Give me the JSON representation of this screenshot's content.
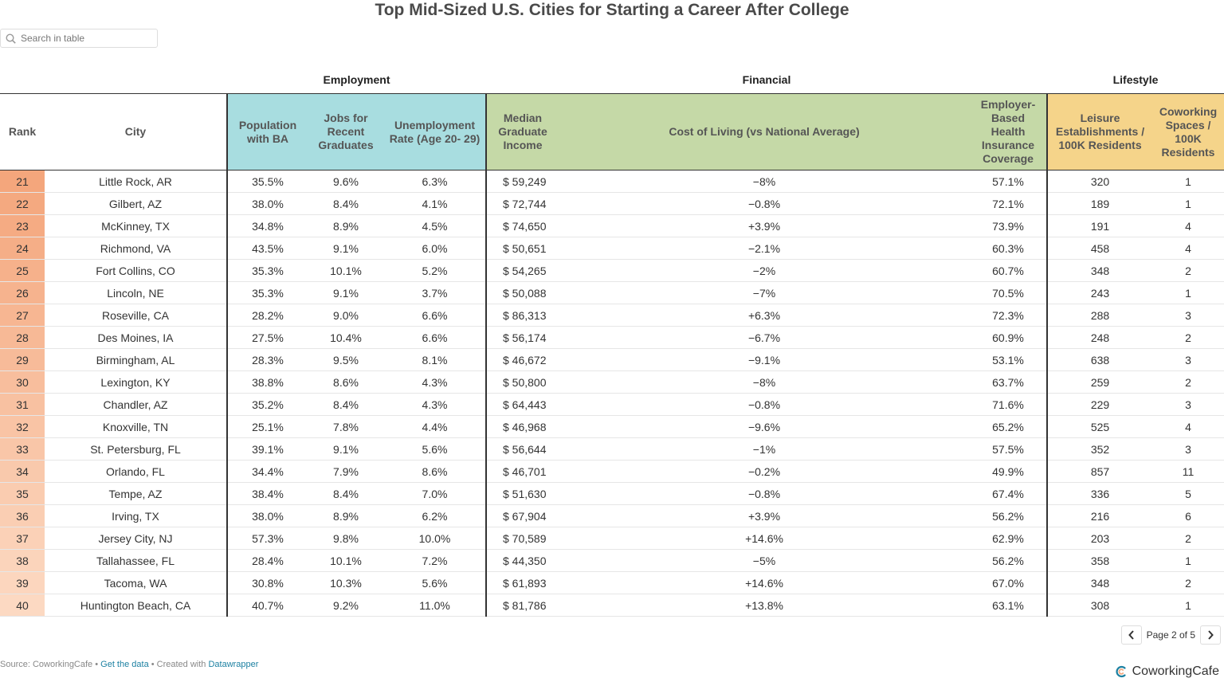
{
  "title": "Top Mid-Sized U.S. Cities for Starting a Career After College",
  "search": {
    "placeholder": "Search in table",
    "icon": "search-icon"
  },
  "groups": {
    "employment": "Employment",
    "financial": "Financial",
    "lifestyle": "Lifestyle"
  },
  "columns": {
    "rank": "Rank",
    "city": "City",
    "population": "Population with BA",
    "jobs": "Jobs for Recent Graduates",
    "unemployment": "Unemployment Rate (Age 20- 29)",
    "income": "Median Graduate Income",
    "col": "Cost of Living (vs National Average)",
    "insurance": "Employer-Based Health Insurance Coverage",
    "leisure": "Leisure Establishments / 100K Residents",
    "coworking": "Coworking Spaces / 100K Residents"
  },
  "colors": {
    "employment": "#a8dde0",
    "financial": "#c5d9a7",
    "lifestyle": "#f5d48a",
    "rank_dark": "#f4a67c",
    "rank_light": "#fcd9c2",
    "link": "#1d81a2"
  },
  "rows": [
    {
      "rank": "21",
      "city": "Little Rock, AR",
      "population": "35.5%",
      "jobs": "9.6%",
      "unemployment": "6.3%",
      "income": "$ 59,249",
      "col": "−8%",
      "insurance": "57.1%",
      "leisure": "320",
      "coworking": "1"
    },
    {
      "rank": "22",
      "city": "Gilbert, AZ",
      "population": "38.0%",
      "jobs": "8.4%",
      "unemployment": "4.1%",
      "income": "$ 72,744",
      "col": "−0.8%",
      "insurance": "72.1%",
      "leisure": "189",
      "coworking": "1"
    },
    {
      "rank": "23",
      "city": "McKinney, TX",
      "population": "34.8%",
      "jobs": "8.9%",
      "unemployment": "4.5%",
      "income": "$ 74,650",
      "col": "+3.9%",
      "insurance": "73.9%",
      "leisure": "191",
      "coworking": "4"
    },
    {
      "rank": "24",
      "city": "Richmond, VA",
      "population": "43.5%",
      "jobs": "9.1%",
      "unemployment": "6.0%",
      "income": "$ 50,651",
      "col": "−2.1%",
      "insurance": "60.3%",
      "leisure": "458",
      "coworking": "4"
    },
    {
      "rank": "25",
      "city": "Fort Collins, CO",
      "population": "35.3%",
      "jobs": "10.1%",
      "unemployment": "5.2%",
      "income": "$ 54,265",
      "col": "−2%",
      "insurance": "60.7%",
      "leisure": "348",
      "coworking": "2"
    },
    {
      "rank": "26",
      "city": "Lincoln, NE",
      "population": "35.3%",
      "jobs": "9.1%",
      "unemployment": "3.7%",
      "income": "$ 50,088",
      "col": "−7%",
      "insurance": "70.5%",
      "leisure": "243",
      "coworking": "1"
    },
    {
      "rank": "27",
      "city": "Roseville, CA",
      "population": "28.2%",
      "jobs": "9.0%",
      "unemployment": "6.6%",
      "income": "$ 86,313",
      "col": "+6.3%",
      "insurance": "72.3%",
      "leisure": "288",
      "coworking": "3"
    },
    {
      "rank": "28",
      "city": "Des Moines, IA",
      "population": "27.5%",
      "jobs": "10.4%",
      "unemployment": "6.6%",
      "income": "$ 56,174",
      "col": "−6.7%",
      "insurance": "60.9%",
      "leisure": "248",
      "coworking": "2"
    },
    {
      "rank": "29",
      "city": "Birmingham, AL",
      "population": "28.3%",
      "jobs": "9.5%",
      "unemployment": "8.1%",
      "income": "$ 46,672",
      "col": "−9.1%",
      "insurance": "53.1%",
      "leisure": "638",
      "coworking": "3"
    },
    {
      "rank": "30",
      "city": "Lexington, KY",
      "population": "38.8%",
      "jobs": "8.6%",
      "unemployment": "4.3%",
      "income": "$ 50,800",
      "col": "−8%",
      "insurance": "63.7%",
      "leisure": "259",
      "coworking": "2"
    },
    {
      "rank": "31",
      "city": "Chandler, AZ",
      "population": "35.2%",
      "jobs": "8.4%",
      "unemployment": "4.3%",
      "income": "$ 64,443",
      "col": "−0.8%",
      "insurance": "71.6%",
      "leisure": "229",
      "coworking": "3"
    },
    {
      "rank": "32",
      "city": "Knoxville, TN",
      "population": "25.1%",
      "jobs": "7.8%",
      "unemployment": "4.4%",
      "income": "$ 46,968",
      "col": "−9.6%",
      "insurance": "65.2%",
      "leisure": "525",
      "coworking": "4"
    },
    {
      "rank": "33",
      "city": "St. Petersburg, FL",
      "population": "39.1%",
      "jobs": "9.1%",
      "unemployment": "5.6%",
      "income": "$ 56,644",
      "col": "−1%",
      "insurance": "57.5%",
      "leisure": "352",
      "coworking": "3"
    },
    {
      "rank": "34",
      "city": "Orlando, FL",
      "population": "34.4%",
      "jobs": "7.9%",
      "unemployment": "8.6%",
      "income": "$ 46,701",
      "col": "−0.2%",
      "insurance": "49.9%",
      "leisure": "857",
      "coworking": "11"
    },
    {
      "rank": "35",
      "city": "Tempe, AZ",
      "population": "38.4%",
      "jobs": "8.4%",
      "unemployment": "7.0%",
      "income": "$ 51,630",
      "col": "−0.8%",
      "insurance": "67.4%",
      "leisure": "336",
      "coworking": "5"
    },
    {
      "rank": "36",
      "city": "Irving, TX",
      "population": "38.0%",
      "jobs": "8.9%",
      "unemployment": "6.2%",
      "income": "$ 67,904",
      "col": "+3.9%",
      "insurance": "56.2%",
      "leisure": "216",
      "coworking": "6"
    },
    {
      "rank": "37",
      "city": "Jersey City, NJ",
      "population": "57.3%",
      "jobs": "9.8%",
      "unemployment": "10.0%",
      "income": "$ 70,589",
      "col": "+14.6%",
      "insurance": "62.9%",
      "leisure": "203",
      "coworking": "2"
    },
    {
      "rank": "38",
      "city": "Tallahassee, FL",
      "population": "28.4%",
      "jobs": "10.1%",
      "unemployment": "7.2%",
      "income": "$ 44,350",
      "col": "−5%",
      "insurance": "56.2%",
      "leisure": "358",
      "coworking": "1"
    },
    {
      "rank": "39",
      "city": "Tacoma, WA",
      "population": "30.8%",
      "jobs": "10.3%",
      "unemployment": "5.6%",
      "income": "$ 61,893",
      "col": "+14.6%",
      "insurance": "67.0%",
      "leisure": "348",
      "coworking": "2"
    },
    {
      "rank": "40",
      "city": "Huntington Beach, CA",
      "population": "40.7%",
      "jobs": "9.2%",
      "unemployment": "11.0%",
      "income": "$ 81,786",
      "col": "+13.8%",
      "insurance": "63.1%",
      "leisure": "308",
      "coworking": "1"
    }
  ],
  "pagination": {
    "label": "Page 2 of 5",
    "prev_icon": "chevron-left-icon",
    "next_icon": "chevron-right-icon"
  },
  "footer": {
    "source_prefix": "Source: CoworkingCafe • ",
    "get_data": "Get the data",
    "created_with": " • Created with ",
    "datawrapper": "Datawrapper",
    "brand": "CoworkingCafe"
  }
}
